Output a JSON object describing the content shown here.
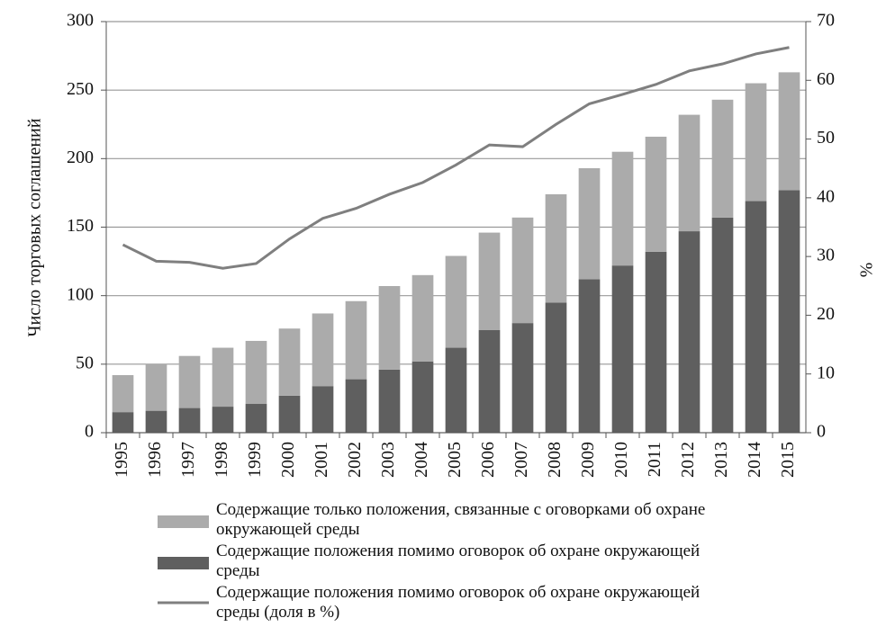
{
  "chart_data": {
    "type": "bar",
    "stacked": true,
    "ylabel": "Число торговых соглашений",
    "y2label": "%",
    "categories": [
      "1995",
      "1996",
      "1997",
      "1998",
      "1999",
      "2000",
      "2001",
      "2002",
      "2003",
      "2004",
      "2005",
      "2006",
      "2007",
      "2008",
      "2009",
      "2010",
      "2011",
      "2012",
      "2013",
      "2014",
      "2015"
    ],
    "ylim": [
      0,
      300
    ],
    "yticks": [
      0,
      50,
      100,
      150,
      200,
      250,
      300
    ],
    "y2lim": [
      0,
      70
    ],
    "y2ticks": [
      0,
      10,
      20,
      30,
      40,
      50,
      60,
      70
    ],
    "grid": true,
    "legend": "bottom",
    "series": [
      {
        "name": "Содержащие положения помимо оговорок об охране окружающей среды",
        "type": "bar",
        "color": "#5f5f5f",
        "values": [
          15,
          16,
          18,
          19,
          21,
          27,
          34,
          39,
          46,
          52,
          62,
          75,
          80,
          95,
          112,
          122,
          132,
          147,
          157,
          169,
          177
        ]
      },
      {
        "name": "Содержащие только положения, связанные с оговорками об охране окружающей среды",
        "type": "bar",
        "color": "#ababab",
        "values": [
          27,
          34,
          38,
          43,
          46,
          49,
          53,
          57,
          61,
          63,
          67,
          71,
          77,
          79,
          81,
          83,
          84,
          85,
          86,
          86,
          86
        ]
      },
      {
        "name": "Содержащие положения помимо оговорок об охране окружающей среды (доля в %)",
        "type": "line",
        "axis": "y2",
        "color": "#7f7f7f",
        "values": [
          32,
          29.2,
          29,
          28,
          28.8,
          33,
          36.5,
          38.2,
          40.6,
          42.6,
          45.6,
          49,
          48.7,
          52.5,
          56,
          57.6,
          59.3,
          61.6,
          62.8,
          64.5,
          65.6
        ]
      }
    ]
  }
}
